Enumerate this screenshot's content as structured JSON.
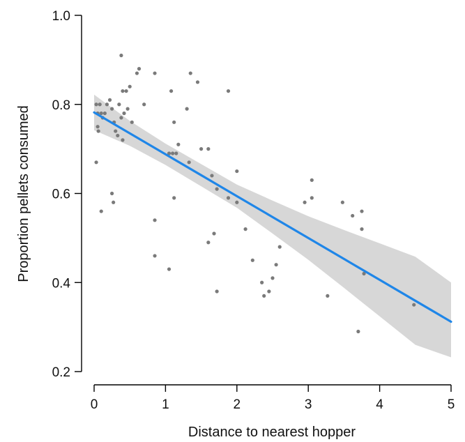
{
  "chart_data": {
    "type": "scatter",
    "title": "",
    "xlabel": "Distance to nearest hopper",
    "ylabel": "Proportion pellets consumed",
    "xlim": [
      0,
      5
    ],
    "ylim": [
      0.2,
      1.0
    ],
    "xticks": [
      "0",
      "1",
      "2",
      "3",
      "4",
      "5"
    ],
    "yticks": [
      "0.2",
      "0.4",
      "0.6",
      "0.8",
      "1.0"
    ],
    "grid": false,
    "legend": "none",
    "points": [
      [
        0.03,
        0.8
      ],
      [
        0.05,
        0.78
      ],
      [
        0.05,
        0.75
      ],
      [
        0.06,
        0.74
      ],
      [
        0.08,
        0.8
      ],
      [
        0.1,
        0.78
      ],
      [
        0.12,
        0.77
      ],
      [
        0.15,
        0.78
      ],
      [
        0.18,
        0.8
      ],
      [
        0.22,
        0.81
      ],
      [
        0.25,
        0.79
      ],
      [
        0.28,
        0.76
      ],
      [
        0.3,
        0.74
      ],
      [
        0.33,
        0.73
      ],
      [
        0.35,
        0.8
      ],
      [
        0.38,
        0.77
      ],
      [
        0.4,
        0.72
      ],
      [
        0.4,
        0.83
      ],
      [
        0.42,
        0.78
      ],
      [
        0.45,
        0.83
      ],
      [
        0.47,
        0.79
      ],
      [
        0.5,
        0.84
      ],
      [
        0.53,
        0.76
      ],
      [
        0.38,
        0.91
      ],
      [
        0.6,
        0.87
      ],
      [
        0.63,
        0.88
      ],
      [
        0.7,
        0.8
      ],
      [
        0.85,
        0.87
      ],
      [
        0.03,
        0.67
      ],
      [
        0.1,
        0.56
      ],
      [
        0.25,
        0.6
      ],
      [
        0.27,
        0.58
      ],
      [
        1.05,
        0.69
      ],
      [
        1.08,
        0.83
      ],
      [
        1.1,
        0.69
      ],
      [
        1.12,
        0.76
      ],
      [
        1.15,
        0.69
      ],
      [
        1.18,
        0.71
      ],
      [
        1.12,
        0.59
      ],
      [
        0.85,
        0.54
      ],
      [
        0.85,
        0.46
      ],
      [
        1.05,
        0.43
      ],
      [
        1.3,
        0.79
      ],
      [
        1.33,
        0.67
      ],
      [
        1.35,
        0.87
      ],
      [
        1.45,
        0.85
      ],
      [
        1.5,
        0.7
      ],
      [
        1.6,
        0.7
      ],
      [
        1.65,
        0.64
      ],
      [
        1.72,
        0.61
      ],
      [
        1.6,
        0.49
      ],
      [
        1.68,
        0.51
      ],
      [
        1.72,
        0.38
      ],
      [
        1.88,
        0.83
      ],
      [
        1.88,
        0.59
      ],
      [
        2.0,
        0.58
      ],
      [
        2.0,
        0.65
      ],
      [
        2.12,
        0.52
      ],
      [
        2.22,
        0.45
      ],
      [
        2.35,
        0.4
      ],
      [
        2.38,
        0.37
      ],
      [
        2.45,
        0.38
      ],
      [
        2.5,
        0.41
      ],
      [
        2.55,
        0.44
      ],
      [
        2.6,
        0.48
      ],
      [
        2.95,
        0.58
      ],
      [
        3.05,
        0.59
      ],
      [
        3.05,
        0.63
      ],
      [
        3.27,
        0.37
      ],
      [
        3.48,
        0.58
      ],
      [
        3.62,
        0.55
      ],
      [
        3.7,
        0.29
      ],
      [
        3.75,
        0.56
      ],
      [
        3.75,
        0.52
      ],
      [
        3.78,
        0.42
      ],
      [
        4.48,
        0.35
      ]
    ],
    "fit": {
      "x": [
        0,
        0.5,
        1,
        1.5,
        2,
        2.5,
        3,
        3.5,
        4,
        4.5,
        5
      ],
      "y": [
        0.782,
        0.735,
        0.688,
        0.641,
        0.594,
        0.547,
        0.5,
        0.453,
        0.406,
        0.359,
        0.312
      ],
      "ci_lower": [
        0.742,
        0.707,
        0.664,
        0.616,
        0.568,
        0.51,
        0.451,
        0.388,
        0.324,
        0.26,
        0.232
      ],
      "ci_upper": [
        0.822,
        0.763,
        0.712,
        0.666,
        0.62,
        0.584,
        0.549,
        0.518,
        0.488,
        0.458,
        0.4
      ]
    },
    "colors": {
      "points": "#7a7a7a",
      "fit_line": "#1f86e8",
      "ci_band": "#d3d3d3"
    }
  }
}
